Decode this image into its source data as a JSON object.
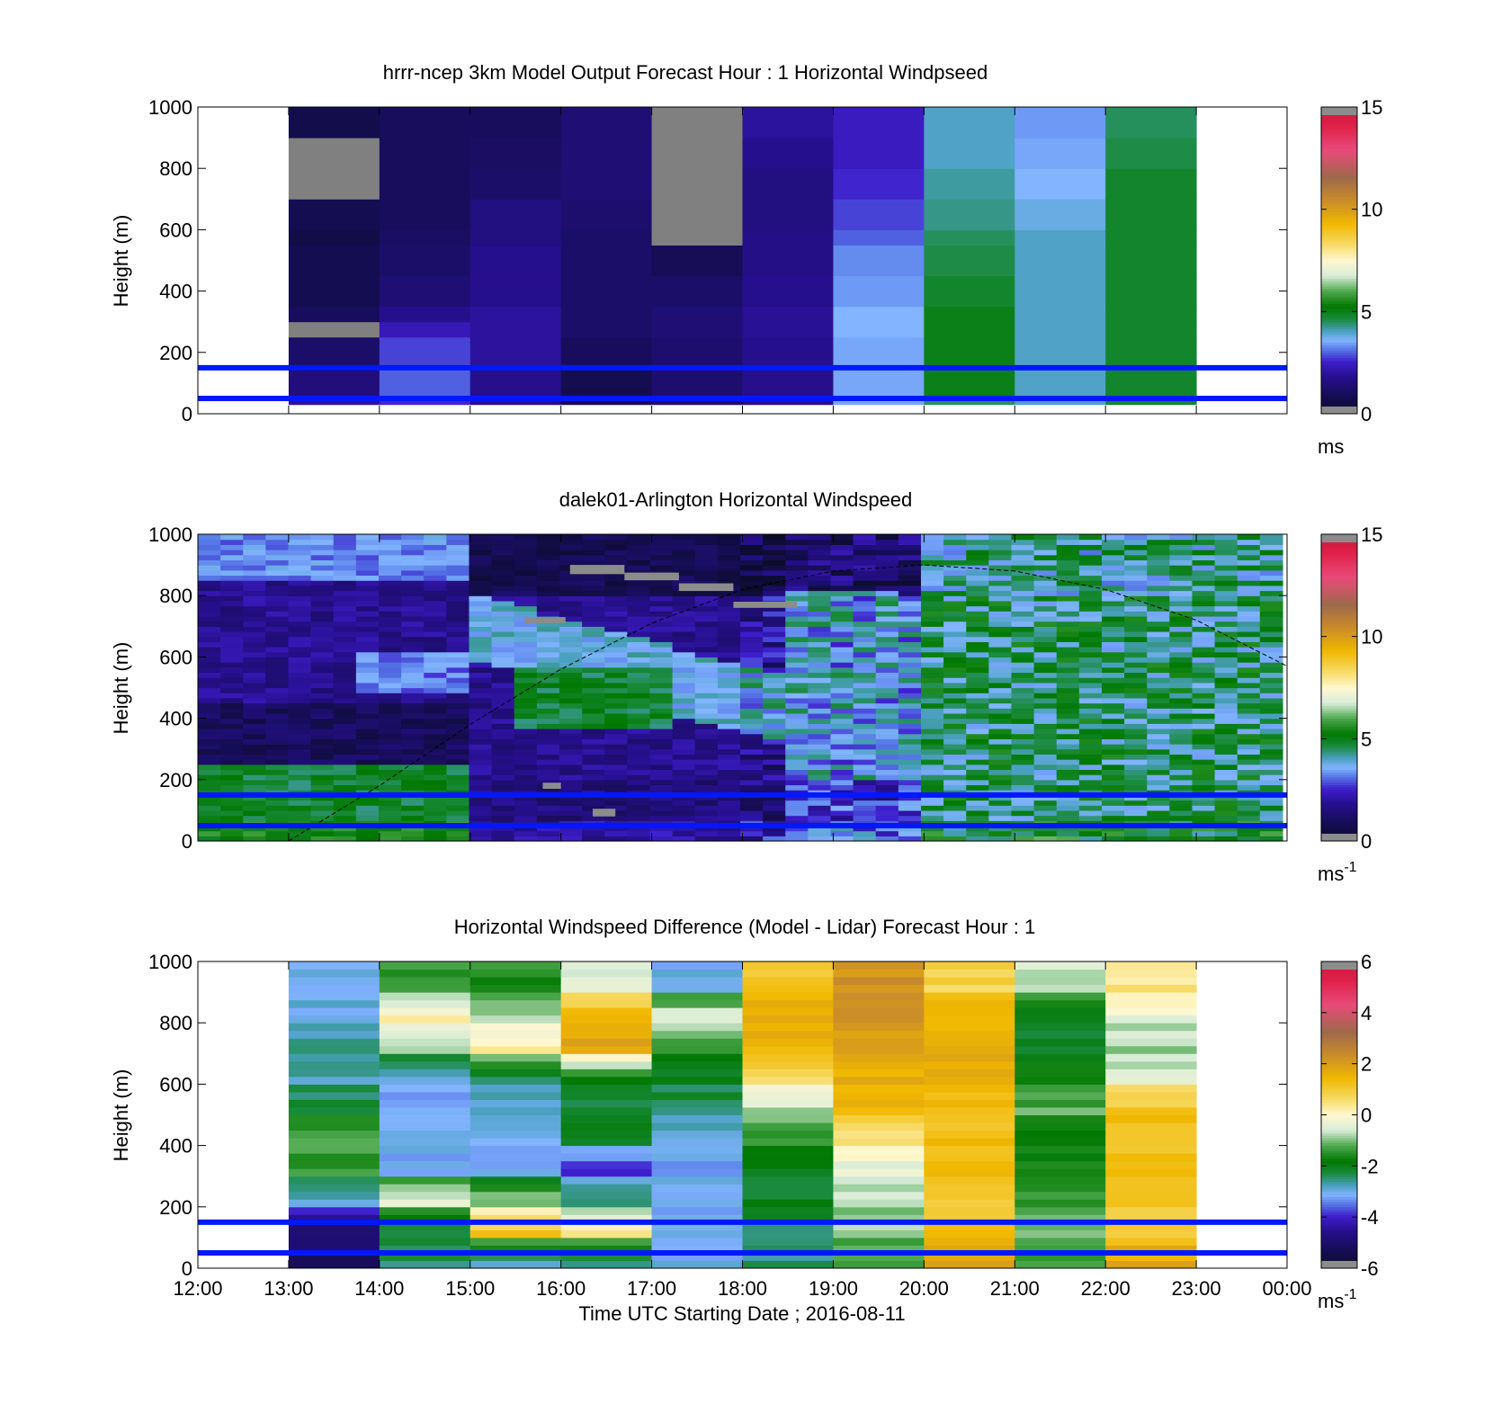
{
  "figure": {
    "xlabel": "Time UTC  Starting Date ; 2016-08-11",
    "x_ticks": [
      "12:00",
      "13:00",
      "14:00",
      "15:00",
      "16:00",
      "17:00",
      "18:00",
      "19:00",
      "20:00",
      "21:00",
      "22:00",
      "23:00",
      "00:00"
    ]
  },
  "chart_data": [
    {
      "type": "heatmap",
      "title": "hrrr-ncep 3km Model Output   Forecast Hour : 1 Horizontal Windpseed",
      "ylabel": "Height (m)",
      "xlim": [
        12,
        24
      ],
      "ylim": [
        0,
        1000
      ],
      "y_ticks": [
        "0",
        "200",
        "400",
        "600",
        "800",
        "1000"
      ],
      "colorbar": {
        "min": 0,
        "max": 15,
        "ticks": [
          "0",
          "5",
          "10",
          "15"
        ],
        "unit": "ms",
        "unit_sup": ""
      },
      "x_edges": [
        13,
        14,
        15,
        16,
        17,
        18,
        19,
        20,
        21,
        22,
        23
      ],
      "y_edges": [
        30,
        60,
        90,
        150,
        250,
        300,
        350,
        450,
        550,
        600,
        700,
        800,
        900,
        1000
      ],
      "columns": [
        [
          2.0,
          1.5,
          1.5,
          1.2,
          -1,
          1.0,
          0.8,
          0.8,
          0.6,
          0.8,
          -1,
          -1,
          0.7
        ],
        [
          2.6,
          3.0,
          3.0,
          2.8,
          2.3,
          1.8,
          1.4,
          1.2,
          1.1,
          1.0,
          1.0,
          1.0,
          1.0
        ],
        [
          1.8,
          1.8,
          1.8,
          2.0,
          2.0,
          2.0,
          1.8,
          1.8,
          1.6,
          1.6,
          1.2,
          1.1,
          1.0
        ],
        [
          0.7,
          0.7,
          0.8,
          1.0,
          1.2,
          1.2,
          1.2,
          1.2,
          1.2,
          1.3,
          1.4,
          1.4,
          1.4
        ],
        [
          1.3,
          1.3,
          1.3,
          1.3,
          1.4,
          1.4,
          1.2,
          0.9,
          -1,
          -1,
          -1,
          -1,
          -1
        ],
        [
          1.8,
          1.8,
          1.8,
          1.8,
          1.9,
          1.9,
          1.8,
          1.7,
          1.7,
          1.6,
          1.6,
          1.8,
          2.0
        ],
        [
          3.5,
          3.5,
          3.5,
          3.5,
          3.6,
          3.6,
          3.4,
          3.3,
          3.0,
          2.8,
          2.6,
          2.4,
          2.4
        ],
        [
          4.5,
          5.0,
          5.0,
          5.0,
          5.0,
          5.0,
          4.8,
          4.6,
          4.5,
          4.3,
          4.2,
          4.0,
          4.0
        ],
        [
          4.0,
          4.0,
          4.0,
          4.0,
          4.0,
          4.0,
          4.0,
          4.0,
          4.0,
          3.8,
          3.6,
          3.5,
          3.4
        ],
        [
          4.8,
          4.8,
          4.8,
          4.8,
          4.8,
          4.8,
          4.8,
          4.8,
          4.8,
          4.8,
          4.8,
          4.6,
          4.5
        ]
      ],
      "hlines": [
        50,
        150
      ]
    },
    {
      "type": "heatmap",
      "title": "dalek01-Arlington  Horizontal Windspeed",
      "ylabel": "Height (m)",
      "xlim": [
        12,
        24
      ],
      "ylim": [
        0,
        1000
      ],
      "y_ticks": [
        "0",
        "200",
        "400",
        "600",
        "800",
        "1000"
      ],
      "colorbar": {
        "min": 0,
        "max": 15,
        "ticks": [
          "0",
          "5",
          "10",
          "15"
        ],
        "unit": "ms",
        "unit_sup": "-1"
      },
      "data_x_range": [
        12,
        23.95
      ],
      "columns_count": 48,
      "rows_count": 60,
      "data_y_range": [
        0,
        1000
      ],
      "missing_segments": [
        {
          "x": [
            16.1,
            16.7
          ],
          "y": [
            870,
            900
          ]
        },
        {
          "x": [
            16.7,
            17.3
          ],
          "y": [
            850,
            875
          ]
        },
        {
          "x": [
            17.3,
            17.9
          ],
          "y": [
            815,
            840
          ]
        },
        {
          "x": [
            15.6,
            16.05
          ],
          "y": [
            710,
            730
          ]
        },
        {
          "x": [
            17.9,
            18.6
          ],
          "y": [
            760,
            780
          ]
        },
        {
          "x": [
            15.8,
            16.0
          ],
          "y": [
            170,
            190
          ]
        },
        {
          "x": [
            16.35,
            16.6
          ],
          "y": [
            80,
            105
          ]
        }
      ],
      "boundary_layer_curve": {
        "x": [
          13.0,
          14.0,
          15.0,
          16.0,
          17.0,
          18.0,
          19.0,
          20.0,
          21.0,
          22.0,
          23.0,
          24.0
        ],
        "y": [
          0,
          180,
          380,
          560,
          710,
          820,
          880,
          900,
          880,
          820,
          720,
          570
        ]
      },
      "hlines": [
        50,
        150
      ]
    },
    {
      "type": "heatmap",
      "title": "Horizontal Windspeed Difference (Model - Lidar) Forecast Hour : 1",
      "ylabel": "Height (m)",
      "xlim": [
        12,
        24
      ],
      "ylim": [
        0,
        1000
      ],
      "y_ticks": [
        "0",
        "200",
        "400",
        "600",
        "800",
        "1000"
      ],
      "colorbar": {
        "min": -6,
        "max": 6,
        "ticks": [
          "-6",
          "-4",
          "-2",
          "0",
          "2",
          "4",
          "6"
        ],
        "unit": "ms",
        "unit_sup": "-1"
      },
      "x_edges": [
        13,
        14,
        15,
        16,
        17,
        18,
        19,
        20,
        21,
        22,
        23
      ],
      "y_edges": [
        0,
        100,
        200,
        300,
        400,
        500,
        600,
        700,
        800,
        900,
        1000
      ],
      "columns": [
        [
          -5,
          -5,
          -2.8,
          -1.4,
          -1.3,
          -2.2,
          -2.8,
          -2.7,
          -2.9,
          -3.0
        ],
        [
          -2.5,
          -2.3,
          -0.2,
          -3.0,
          -3.2,
          -3.2,
          -3.0,
          -0.6,
          0.1,
          -1.4
        ],
        [
          -3.0,
          1.2,
          -0.8,
          -3.2,
          -3.2,
          -2.9,
          -2.4,
          0.2,
          -0.7,
          -1.5
        ],
        [
          -2.5,
          0.3,
          -2.3,
          -4.0,
          -2.0,
          -2.2,
          -1.8,
          1.8,
          1.5,
          -0.5
        ],
        [
          -3.0,
          -3.2,
          -3.0,
          -3.2,
          -2.8,
          -2.4,
          -2.0,
          -1.3,
          -0.3,
          -3.0
        ],
        [
          -2.5,
          -2.3,
          -2.1,
          -2.0,
          -1.5,
          -0.8,
          0.6,
          1.5,
          1.6,
          1.2
        ],
        [
          -1.4,
          -0.9,
          -0.8,
          -0.4,
          0.4,
          1.6,
          1.6,
          2.0,
          2.3,
          2.2
        ],
        [
          1.8,
          1.3,
          1.0,
          1.3,
          1.3,
          1.4,
          1.7,
          1.6,
          1.5,
          0.8
        ],
        [
          -1.3,
          -1.0,
          -1.4,
          -1.8,
          -1.6,
          -1.2,
          -1.5,
          -2.2,
          -1.9,
          -0.6
        ],
        [
          1.8,
          1.1,
          1.0,
          1.2,
          1.3,
          1.2,
          -0.6,
          -0.9,
          -0.3,
          0.4
        ]
      ],
      "hlines": [
        50,
        150
      ]
    }
  ]
}
